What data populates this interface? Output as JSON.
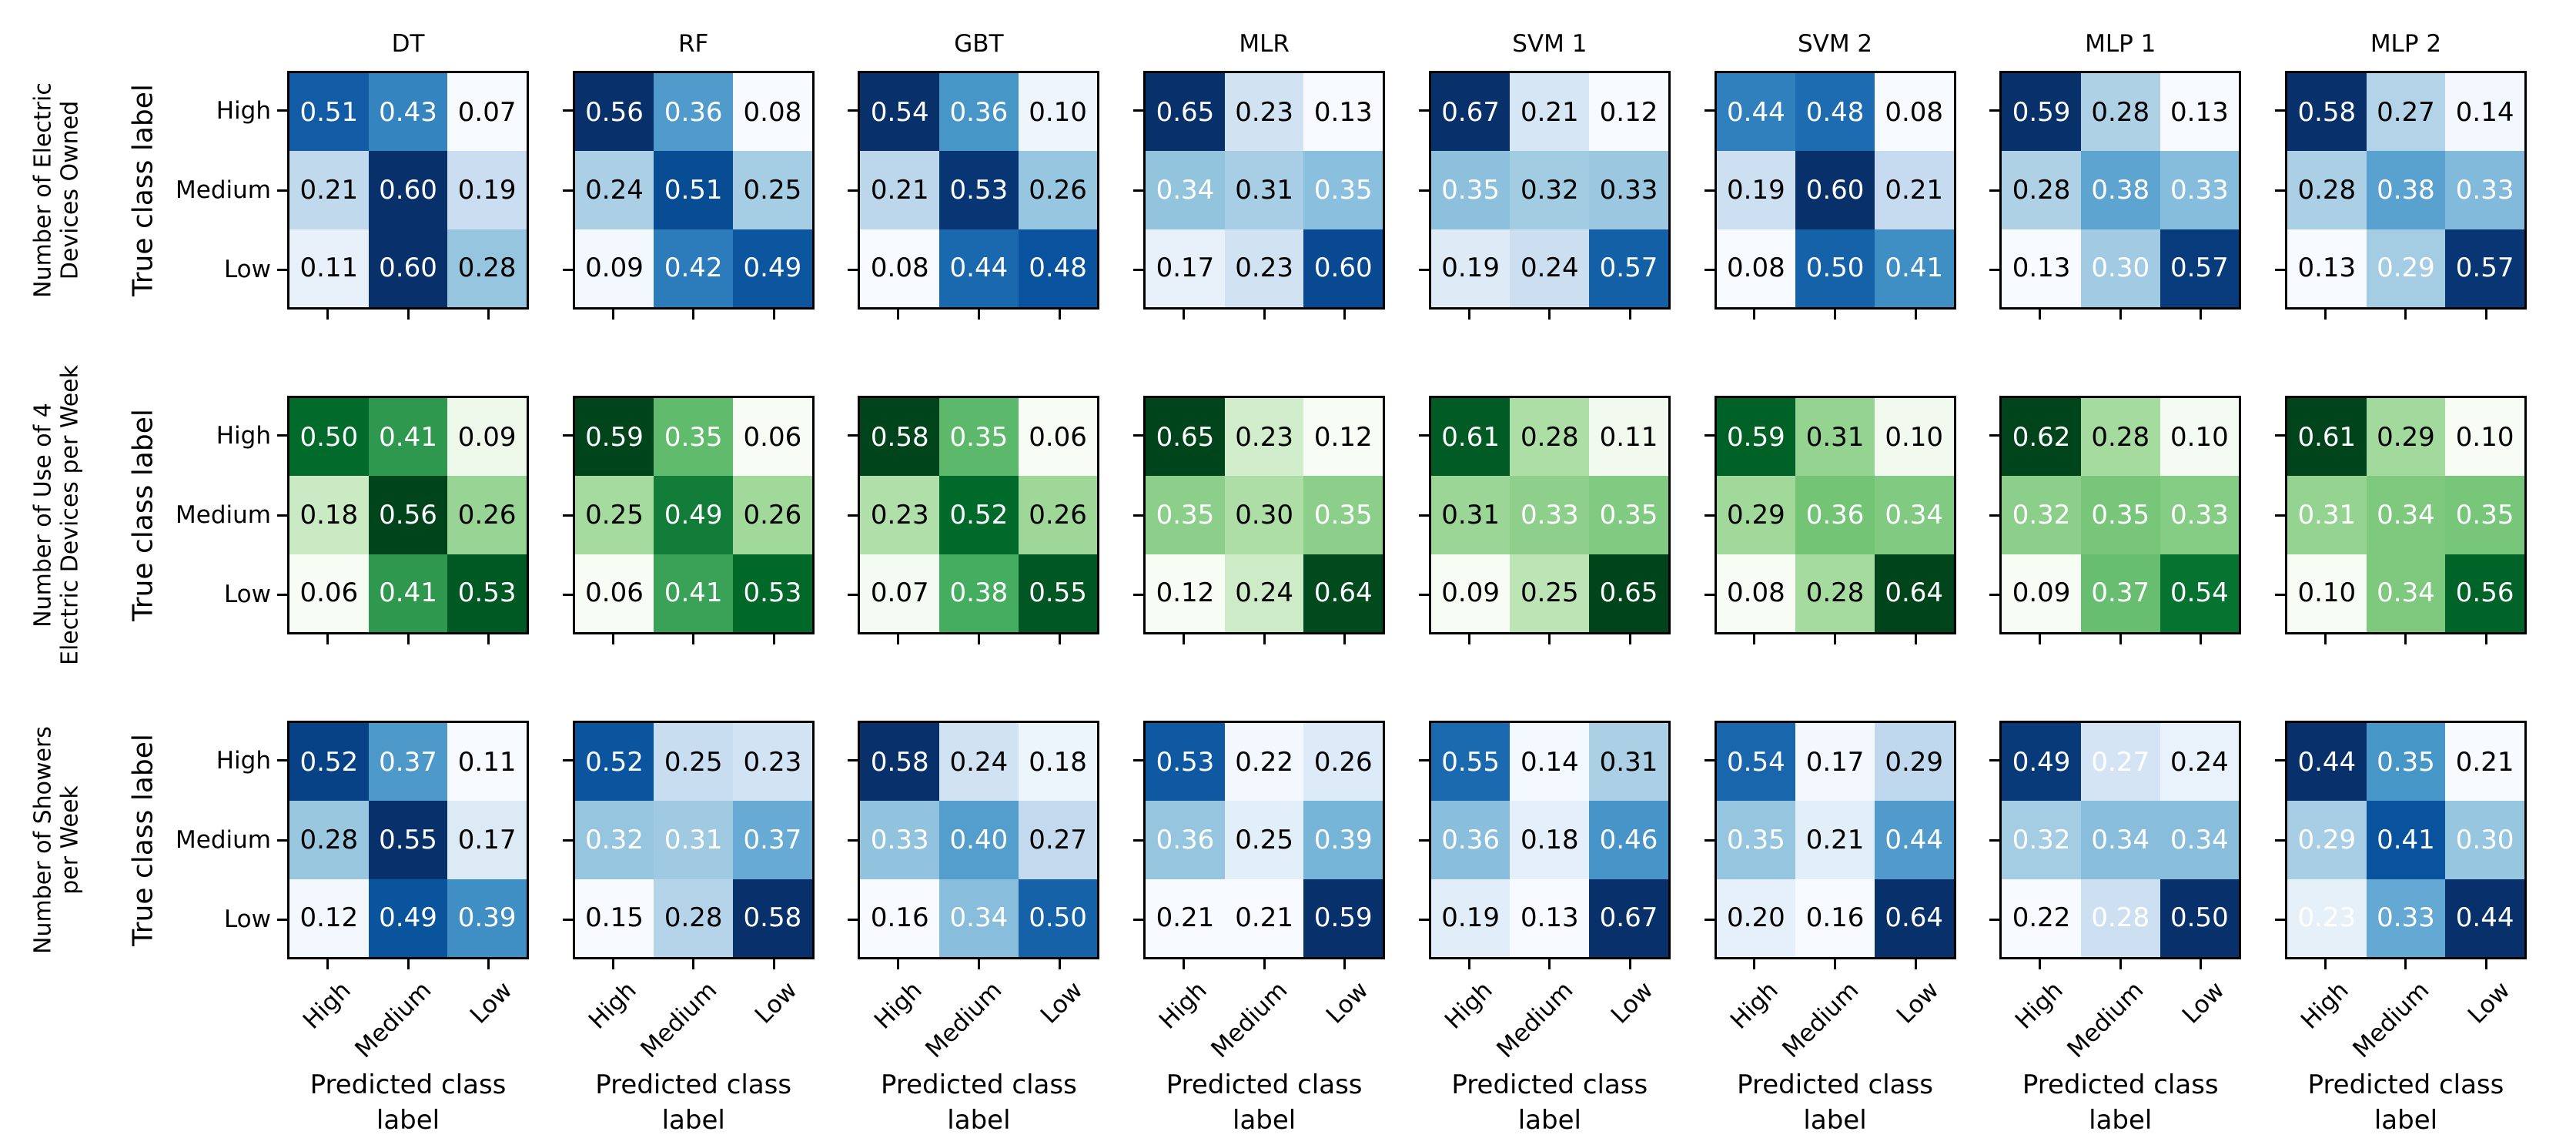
{
  "figure": {
    "background": "#ffffff",
    "text_color": "#000000",
    "cell_text_white": "#ffffff",
    "cell_text_black": "#000000"
  },
  "colormaps": {
    "Blues": [
      "#f7fbff",
      "#deebf7",
      "#c6dbef",
      "#9ecae1",
      "#6baed6",
      "#4292c6",
      "#2171b5",
      "#08519c",
      "#08306b"
    ],
    "Greens": [
      "#f7fcf5",
      "#e5f5e0",
      "#c7e9c0",
      "#a1d99b",
      "#74c476",
      "#41ab5d",
      "#238b45",
      "#006d2c",
      "#00441b"
    ]
  },
  "chart_data": {
    "type": "heatmap",
    "subtype": "confusion-matrix-grid",
    "xlabel": "Predicted class label",
    "ylabel": "True class label",
    "x_categories": [
      "High",
      "Medium",
      "Low"
    ],
    "y_categories": [
      "High",
      "Medium",
      "Low"
    ],
    "model_columns": [
      "DT",
      "RF",
      "GBT",
      "MLR",
      "SVM 1",
      "SVM 2",
      "MLP 1",
      "MLP 2"
    ],
    "grids": [
      {
        "target": "Number of Electric\nDevices Owned",
        "cmap": "Blues",
        "models": [
          {
            "name": "DT",
            "values": [
              [
                0.51,
                0.43,
                0.07
              ],
              [
                0.21,
                0.6,
                0.19
              ],
              [
                0.11,
                0.6,
                0.28
              ]
            ],
            "white_text": [
              [
                1,
                1,
                0
              ],
              [
                0,
                1,
                0
              ],
              [
                0,
                1,
                0
              ]
            ]
          },
          {
            "name": "RF",
            "values": [
              [
                0.56,
                0.36,
                0.08
              ],
              [
                0.24,
                0.51,
                0.25
              ],
              [
                0.09,
                0.42,
                0.49
              ]
            ],
            "white_text": [
              [
                1,
                1,
                0
              ],
              [
                0,
                1,
                0
              ],
              [
                0,
                1,
                1
              ]
            ]
          },
          {
            "name": "GBT",
            "values": [
              [
                0.54,
                0.36,
                0.1
              ],
              [
                0.21,
                0.53,
                0.26
              ],
              [
                0.08,
                0.44,
                0.48
              ]
            ],
            "white_text": [
              [
                1,
                1,
                0
              ],
              [
                0,
                1,
                0
              ],
              [
                0,
                1,
                1
              ]
            ]
          },
          {
            "name": "MLR",
            "values": [
              [
                0.65,
                0.23,
                0.13
              ],
              [
                0.34,
                0.31,
                0.35
              ],
              [
                0.17,
                0.23,
                0.6
              ]
            ],
            "white_text": [
              [
                1,
                0,
                0
              ],
              [
                1,
                0,
                1
              ],
              [
                0,
                0,
                1
              ]
            ]
          },
          {
            "name": "SVM 1",
            "values": [
              [
                0.67,
                0.21,
                0.12
              ],
              [
                0.35,
                0.32,
                0.33
              ],
              [
                0.19,
                0.24,
                0.57
              ]
            ],
            "white_text": [
              [
                1,
                0,
                0
              ],
              [
                1,
                0,
                0
              ],
              [
                0,
                0,
                1
              ]
            ]
          },
          {
            "name": "SVM 2",
            "values": [
              [
                0.44,
                0.48,
                0.08
              ],
              [
                0.19,
                0.6,
                0.21
              ],
              [
                0.08,
                0.5,
                0.41
              ]
            ],
            "white_text": [
              [
                1,
                1,
                0
              ],
              [
                0,
                1,
                0
              ],
              [
                0,
                1,
                1
              ]
            ]
          },
          {
            "name": "MLP 1",
            "values": [
              [
                0.59,
                0.28,
                0.13
              ],
              [
                0.28,
                0.38,
                0.33
              ],
              [
                0.13,
                0.3,
                0.57
              ]
            ],
            "white_text": [
              [
                1,
                0,
                0
              ],
              [
                0,
                1,
                1
              ],
              [
                0,
                1,
                1
              ]
            ]
          },
          {
            "name": "MLP 2",
            "values": [
              [
                0.58,
                0.27,
                0.14
              ],
              [
                0.28,
                0.38,
                0.33
              ],
              [
                0.13,
                0.29,
                0.57
              ]
            ],
            "white_text": [
              [
                1,
                0,
                0
              ],
              [
                0,
                1,
                1
              ],
              [
                0,
                1,
                1
              ]
            ]
          }
        ]
      },
      {
        "target": "Number of Use of 4\nElectric Devices per Week",
        "cmap": "Greens",
        "models": [
          {
            "name": "DT",
            "values": [
              [
                0.5,
                0.41,
                0.09
              ],
              [
                0.18,
                0.56,
                0.26
              ],
              [
                0.06,
                0.41,
                0.53
              ]
            ],
            "white_text": [
              [
                1,
                1,
                0
              ],
              [
                0,
                1,
                0
              ],
              [
                0,
                1,
                1
              ]
            ]
          },
          {
            "name": "RF",
            "values": [
              [
                0.59,
                0.35,
                0.06
              ],
              [
                0.25,
                0.49,
                0.26
              ],
              [
                0.06,
                0.41,
                0.53
              ]
            ],
            "white_text": [
              [
                1,
                1,
                0
              ],
              [
                0,
                1,
                0
              ],
              [
                0,
                1,
                1
              ]
            ]
          },
          {
            "name": "GBT",
            "values": [
              [
                0.58,
                0.35,
                0.06
              ],
              [
                0.23,
                0.52,
                0.26
              ],
              [
                0.07,
                0.38,
                0.55
              ]
            ],
            "white_text": [
              [
                1,
                1,
                0
              ],
              [
                0,
                1,
                0
              ],
              [
                0,
                1,
                1
              ]
            ]
          },
          {
            "name": "MLR",
            "values": [
              [
                0.65,
                0.23,
                0.12
              ],
              [
                0.35,
                0.3,
                0.35
              ],
              [
                0.12,
                0.24,
                0.64
              ]
            ],
            "white_text": [
              [
                1,
                0,
                0
              ],
              [
                1,
                0,
                1
              ],
              [
                0,
                0,
                1
              ]
            ]
          },
          {
            "name": "SVM 1",
            "values": [
              [
                0.61,
                0.28,
                0.11
              ],
              [
                0.31,
                0.33,
                0.35
              ],
              [
                0.09,
                0.25,
                0.65
              ]
            ],
            "white_text": [
              [
                1,
                0,
                0
              ],
              [
                0,
                1,
                1
              ],
              [
                0,
                0,
                1
              ]
            ]
          },
          {
            "name": "SVM 2",
            "values": [
              [
                0.59,
                0.31,
                0.1
              ],
              [
                0.29,
                0.36,
                0.34
              ],
              [
                0.08,
                0.28,
                0.64
              ]
            ],
            "white_text": [
              [
                1,
                0,
                0
              ],
              [
                0,
                1,
                1
              ],
              [
                0,
                0,
                1
              ]
            ]
          },
          {
            "name": "MLP 1",
            "values": [
              [
                0.62,
                0.28,
                0.1
              ],
              [
                0.32,
                0.35,
                0.33
              ],
              [
                0.09,
                0.37,
                0.54
              ]
            ],
            "white_text": [
              [
                1,
                0,
                0
              ],
              [
                1,
                1,
                1
              ],
              [
                0,
                1,
                1
              ]
            ]
          },
          {
            "name": "MLP 2",
            "values": [
              [
                0.61,
                0.29,
                0.1
              ],
              [
                0.31,
                0.34,
                0.35
              ],
              [
                0.1,
                0.34,
                0.56
              ]
            ],
            "white_text": [
              [
                1,
                0,
                0
              ],
              [
                1,
                1,
                1
              ],
              [
                0,
                1,
                1
              ]
            ]
          }
        ]
      },
      {
        "target": "Number of Showers\nper Week",
        "cmap": "Blues",
        "models": [
          {
            "name": "DT",
            "values": [
              [
                0.52,
                0.37,
                0.11
              ],
              [
                0.28,
                0.55,
                0.17
              ],
              [
                0.12,
                0.49,
                0.39
              ]
            ],
            "white_text": [
              [
                1,
                1,
                0
              ],
              [
                0,
                1,
                0
              ],
              [
                0,
                1,
                1
              ]
            ]
          },
          {
            "name": "RF",
            "values": [
              [
                0.52,
                0.25,
                0.23
              ],
              [
                0.32,
                0.31,
                0.37
              ],
              [
                0.15,
                0.28,
                0.58
              ]
            ],
            "white_text": [
              [
                1,
                0,
                0
              ],
              [
                1,
                1,
                1
              ],
              [
                0,
                0,
                1
              ]
            ]
          },
          {
            "name": "GBT",
            "values": [
              [
                0.58,
                0.24,
                0.18
              ],
              [
                0.33,
                0.4,
                0.27
              ],
              [
                0.16,
                0.34,
                0.5
              ]
            ],
            "white_text": [
              [
                1,
                0,
                0
              ],
              [
                1,
                1,
                0
              ],
              [
                0,
                1,
                1
              ]
            ]
          },
          {
            "name": "MLR",
            "values": [
              [
                0.53,
                0.22,
                0.26
              ],
              [
                0.36,
                0.25,
                0.39
              ],
              [
                0.21,
                0.21,
                0.59
              ]
            ],
            "white_text": [
              [
                1,
                0,
                0
              ],
              [
                1,
                0,
                1
              ],
              [
                0,
                0,
                1
              ]
            ]
          },
          {
            "name": "SVM 1",
            "values": [
              [
                0.55,
                0.14,
                0.31
              ],
              [
                0.36,
                0.18,
                0.46
              ],
              [
                0.19,
                0.13,
                0.67
              ]
            ],
            "white_text": [
              [
                1,
                0,
                0
              ],
              [
                1,
                0,
                1
              ],
              [
                0,
                0,
                1
              ]
            ]
          },
          {
            "name": "SVM 2",
            "values": [
              [
                0.54,
                0.17,
                0.29
              ],
              [
                0.35,
                0.21,
                0.44
              ],
              [
                0.2,
                0.16,
                0.64
              ]
            ],
            "white_text": [
              [
                1,
                0,
                0
              ],
              [
                1,
                0,
                1
              ],
              [
                0,
                0,
                1
              ]
            ]
          },
          {
            "name": "MLP 1",
            "values": [
              [
                0.49,
                0.27,
                0.24
              ],
              [
                0.32,
                0.34,
                0.34
              ],
              [
                0.22,
                0.28,
                0.5
              ]
            ],
            "white_text": [
              [
                1,
                1,
                0
              ],
              [
                1,
                1,
                1
              ],
              [
                0,
                1,
                1
              ]
            ]
          },
          {
            "name": "MLP 2",
            "values": [
              [
                0.44,
                0.35,
                0.21
              ],
              [
                0.29,
                0.41,
                0.3
              ],
              [
                0.23,
                0.33,
                0.44
              ]
            ],
            "white_text": [
              [
                1,
                1,
                0
              ],
              [
                1,
                1,
                1
              ],
              [
                1,
                1,
                1
              ]
            ]
          }
        ]
      }
    ]
  }
}
